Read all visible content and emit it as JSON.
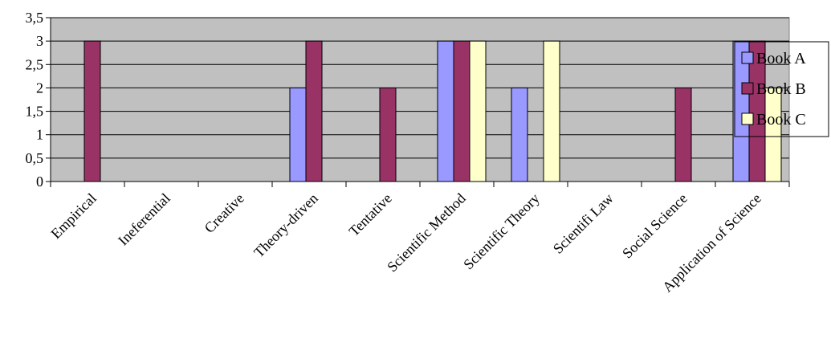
{
  "chart_data": {
    "type": "bar",
    "categories": [
      "Empirical",
      "Ineferential",
      "Creative",
      "Theory-driven",
      "Tentative",
      "Scientific Method",
      "Scientific Theory",
      "Scientifi Law",
      "Social Science",
      "Application of Science"
    ],
    "series": [
      {
        "name": "Book A",
        "color": "#9999ff",
        "values": [
          0,
          0,
          0,
          2,
          0,
          3,
          2,
          0,
          0,
          3
        ]
      },
      {
        "name": "Book B",
        "color": "#993366",
        "values": [
          3,
          0,
          0,
          3,
          2,
          3,
          0,
          0,
          2,
          3
        ]
      },
      {
        "name": "Book C",
        "color": "#ffffcc",
        "values": [
          0,
          0,
          0,
          0,
          0,
          3,
          3,
          0,
          0,
          2
        ]
      }
    ],
    "y_ticks": [
      "0",
      "0,5",
      "1",
      "1,5",
      "2",
      "2,5",
      "3",
      "3,5"
    ],
    "ylim": [
      0,
      3.5
    ],
    "y_step": 0.5,
    "grid": true,
    "legend_position": "right",
    "plot_background": "#c0c0c0"
  }
}
